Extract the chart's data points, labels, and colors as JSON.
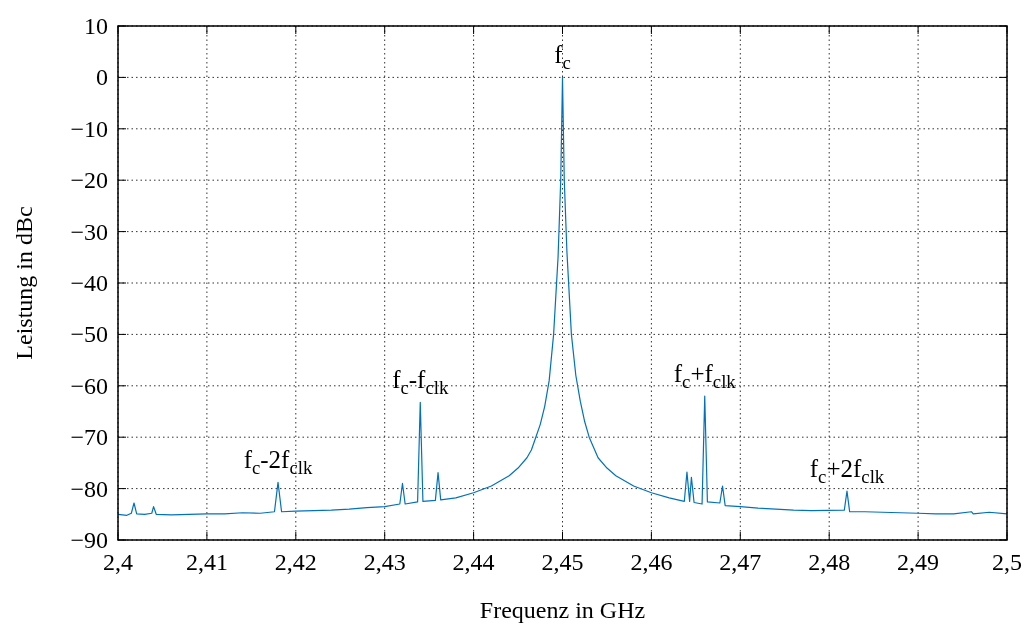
{
  "chart_data": {
    "type": "line",
    "xlabel": "Frequenz in GHz",
    "ylabel": "Leistung in dBc",
    "xlim": [
      2.4,
      2.5
    ],
    "ylim": [
      -90,
      10
    ],
    "xticks": [
      {
        "value": 2.4,
        "label": "2,4"
      },
      {
        "value": 2.41,
        "label": "2,41"
      },
      {
        "value": 2.42,
        "label": "2,42"
      },
      {
        "value": 2.43,
        "label": "2,43"
      },
      {
        "value": 2.44,
        "label": "2,44"
      },
      {
        "value": 2.45,
        "label": "2,45"
      },
      {
        "value": 2.46,
        "label": "2,46"
      },
      {
        "value": 2.47,
        "label": "2,47"
      },
      {
        "value": 2.48,
        "label": "2,48"
      },
      {
        "value": 2.49,
        "label": "2,49"
      },
      {
        "value": 2.5,
        "label": "2,5"
      }
    ],
    "yticks": [
      {
        "value": -90,
        "label": "−90"
      },
      {
        "value": -80,
        "label": "−80"
      },
      {
        "value": -70,
        "label": "−70"
      },
      {
        "value": -60,
        "label": "−60"
      },
      {
        "value": -50,
        "label": "−50"
      },
      {
        "value": -40,
        "label": "−40"
      },
      {
        "value": -30,
        "label": "−30"
      },
      {
        "value": -20,
        "label": "−20"
      },
      {
        "value": -10,
        "label": "−10"
      },
      0,
      10
    ],
    "grid": true,
    "annotations": [
      {
        "text": "f$_{c}$",
        "x": 2.45,
        "y": 0
      },
      {
        "text": "f$_{c}$-f$_{clk}$",
        "x": 2.434,
        "y": -63.2
      },
      {
        "text": "f$_{c}$+f$_{clk}$",
        "x": 2.466,
        "y": -62
      },
      {
        "text": "f$_{c}$-2f$_{clk}$",
        "x": 2.418,
        "y": -78.8
      },
      {
        "text": "f$_{c}$+2f$_{clk}$",
        "x": 2.482,
        "y": -80.5
      }
    ],
    "series": [
      {
        "color": "#0072bd",
        "x": [
          2.4,
          2.401,
          2.4015,
          2.4018,
          2.4021,
          2.403,
          2.4038,
          2.404,
          2.4043,
          2.406,
          2.408,
          2.41,
          2.412,
          2.414,
          2.416,
          2.4176,
          2.418,
          2.4184,
          2.42,
          2.422,
          2.424,
          2.426,
          2.428,
          2.43,
          2.4317,
          2.432,
          2.4323,
          2.4337,
          2.434,
          2.4343,
          2.4357,
          2.436,
          2.4363,
          2.438,
          2.44,
          2.442,
          2.444,
          2.445,
          2.446,
          2.4465,
          2.447,
          2.4475,
          2.448,
          2.4485,
          2.449,
          2.4495,
          2.4498,
          2.45,
          2.4502,
          2.4505,
          2.451,
          2.4515,
          2.452,
          2.4525,
          2.453,
          2.454,
          2.455,
          2.456,
          2.458,
          2.46,
          2.462,
          2.4637,
          2.464,
          2.4643,
          2.4645,
          2.4648,
          2.4657,
          2.466,
          2.4663,
          2.4677,
          2.468,
          2.4683,
          2.47,
          2.472,
          2.474,
          2.476,
          2.478,
          2.4817,
          2.482,
          2.4823,
          2.484,
          2.486,
          2.488,
          2.49,
          2.492,
          2.494,
          2.496,
          2.4962,
          2.498,
          2.5
        ],
        "values": [
          -85,
          -85.2,
          -84.8,
          -82.8,
          -84.9,
          -85,
          -84.8,
          -83.5,
          -85,
          -85.1,
          -85,
          -84.9,
          -84.9,
          -84.7,
          -84.8,
          -84.5,
          -78.8,
          -84.5,
          -84.4,
          -84.3,
          -84.2,
          -84,
          -83.7,
          -83.5,
          -83,
          -79,
          -83,
          -82.6,
          -63.2,
          -82.5,
          -82.3,
          -76.9,
          -82.2,
          -81.8,
          -80.8,
          -79.5,
          -77.5,
          -76,
          -74,
          -72.5,
          -70,
          -67.5,
          -64,
          -59,
          -50,
          -35,
          -20,
          0,
          -20,
          -34,
          -50,
          -58,
          -63,
          -67,
          -70,
          -74,
          -76,
          -77.5,
          -79.5,
          -80.8,
          -81.8,
          -82.5,
          -76.8,
          -82.5,
          -77.8,
          -82.7,
          -83,
          -62,
          -82.6,
          -82.8,
          -79.5,
          -83.3,
          -83.5,
          -83.8,
          -84,
          -84.2,
          -84.3,
          -84.2,
          -80.5,
          -84.5,
          -84.5,
          -84.6,
          -84.7,
          -84.8,
          -84.9,
          -84.9,
          -84.5,
          -84.9,
          -84.6,
          -84.9
        ]
      }
    ]
  }
}
